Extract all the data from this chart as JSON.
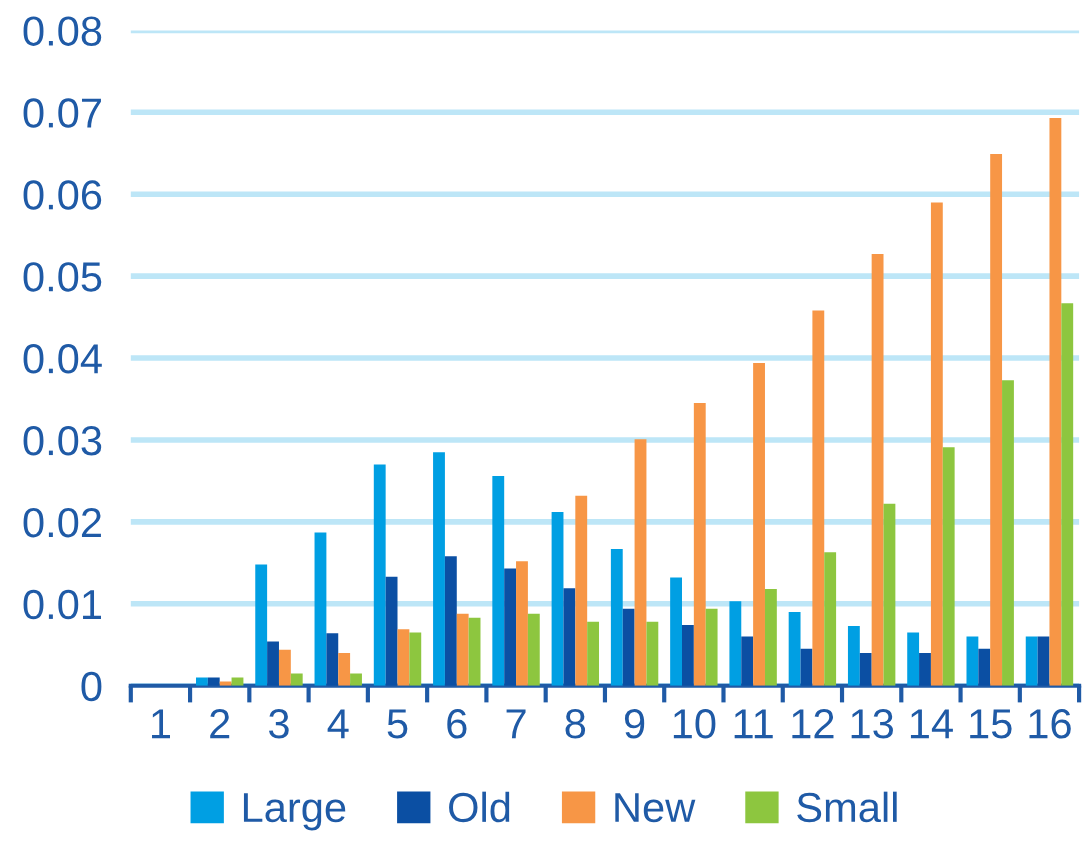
{
  "chart_data": {
    "type": "bar",
    "categories": [
      "1",
      "2",
      "3",
      "4",
      "5",
      "6",
      "7",
      "8",
      "9",
      "10",
      "11",
      "12",
      "13",
      "14",
      "15",
      "16"
    ],
    "series": [
      {
        "name": "Large",
        "color": "#009fe3",
        "values": [
          0,
          0.001,
          0.0148,
          0.0187,
          0.027,
          0.0285,
          0.0256,
          0.0212,
          0.0167,
          0.0132,
          0.0103,
          0.009,
          0.0073,
          0.0065,
          0.006,
          0.006
        ]
      },
      {
        "name": "Old",
        "color": "#0b4fa3",
        "values": [
          0,
          0.001,
          0.0054,
          0.0064,
          0.0133,
          0.0158,
          0.0143,
          0.0119,
          0.0094,
          0.0074,
          0.006,
          0.0045,
          0.004,
          0.004,
          0.0045,
          0.006
        ]
      },
      {
        "name": "New",
        "color": "#f79646",
        "values": [
          0,
          0.0005,
          0.0044,
          0.004,
          0.0069,
          0.0088,
          0.0152,
          0.0232,
          0.0301,
          0.0345,
          0.0394,
          0.0458,
          0.0527,
          0.059,
          0.0649,
          0.0693
        ]
      },
      {
        "name": "Small",
        "color": "#8dc63f",
        "values": [
          0,
          0.001,
          0.0015,
          0.0015,
          0.0065,
          0.0083,
          0.0088,
          0.0078,
          0.0078,
          0.0094,
          0.0118,
          0.0163,
          0.0222,
          0.0291,
          0.0373,
          0.0467
        ]
      }
    ],
    "ylim": [
      0,
      0.08
    ],
    "yticks": [
      0,
      0.01,
      0.02,
      0.03,
      0.04,
      0.05,
      0.06,
      0.07,
      0.08
    ],
    "grid": "y",
    "legend": "bottom"
  }
}
